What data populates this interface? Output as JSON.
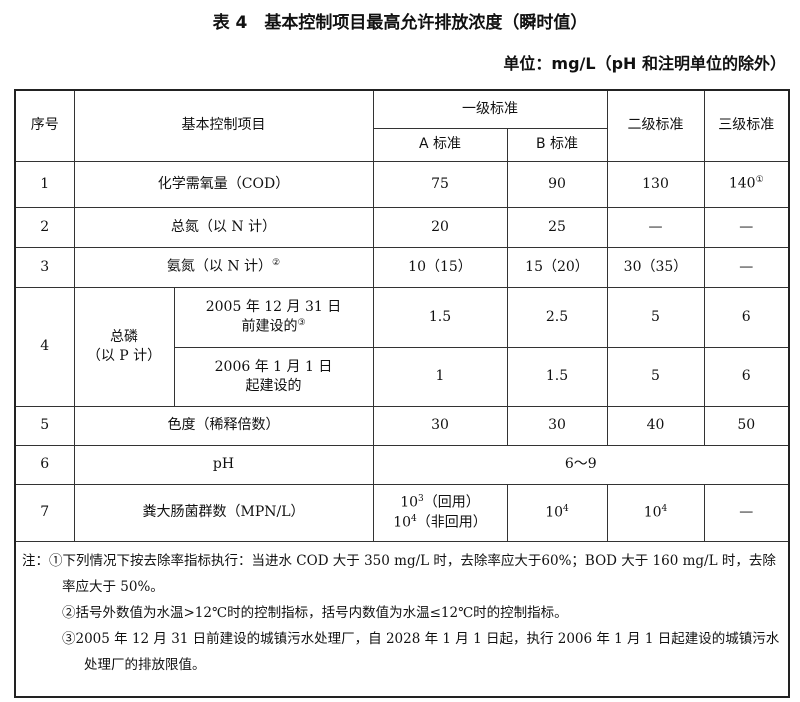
{
  "title": "表 4　基本控制项目最高允许排放浓度（瞬时值）",
  "unit": "单位：mg/L（pH 和注明单位的除外）",
  "header": {
    "no": "序号",
    "item": "基本控制项目",
    "grade1": "一级标准",
    "a": "A 标准",
    "b": "B 标准",
    "grade2": "二级标准",
    "grade3": "三级标准"
  },
  "rows": [
    {
      "no": "1",
      "item": "化学需氧量（COD）",
      "a": "75",
      "b": "90",
      "g2": "130",
      "g3": "140",
      "g3_sup": "①"
    },
    {
      "no": "2",
      "item": "总氮（以 N 计）",
      "a": "20",
      "b": "25",
      "g2": "—",
      "g3": "—"
    },
    {
      "no": "3",
      "item": "氨氮（以 N 计）",
      "item_sup": "②",
      "a": "10（15）",
      "b": "15（20）",
      "g2": "30（35）",
      "g3": "—"
    },
    {
      "no": "4",
      "item": "总磷",
      "item2": "（以 P 计）",
      "sub": [
        {
          "l1": "2005 年 12 月 31 日",
          "l2": "前建设的",
          "sup": "③",
          "a": "1.5",
          "b": "2.5",
          "g2": "5",
          "g3": "6"
        },
        {
          "l1": "2006 年 1 月 1 日",
          "l2": "起建设的",
          "a": "1",
          "b": "1.5",
          "g2": "5",
          "g3": "6"
        }
      ]
    },
    {
      "no": "5",
      "item": "色度（稀释倍数）",
      "a": "30",
      "b": "30",
      "g2": "40",
      "g3": "50"
    },
    {
      "no": "6",
      "item": "pH",
      "all": "6～9"
    },
    {
      "no": "7",
      "item": "粪大肠菌群数（MPN/L）",
      "a1": "10",
      "a1_sup": "3",
      "a1_t": "（回用）",
      "a2": "10",
      "a2_sup": "4",
      "a2_t": "（非回用）",
      "b": "10",
      "b_sup": "4",
      "g2": "10",
      "g2_sup": "4",
      "g3": "—"
    }
  ],
  "notes": [
    "注：①下列情况下按去除率指标执行：当进水 COD 大于 350 mg/L 时，去除率应大于60%；BOD 大于 160 mg/L 时，去除率应大于 50%。",
    "②括号外数值为水温>12℃时的控制指标，括号内数值为水温≤12℃时的控制指标。",
    "③2005 年 12 月 31 日前建设的城镇污水处理厂，自 2028 年 1 月 1 日起，执行 2006 年 1 月 1 日起建设的城镇污水处理厂的排放限值。"
  ]
}
